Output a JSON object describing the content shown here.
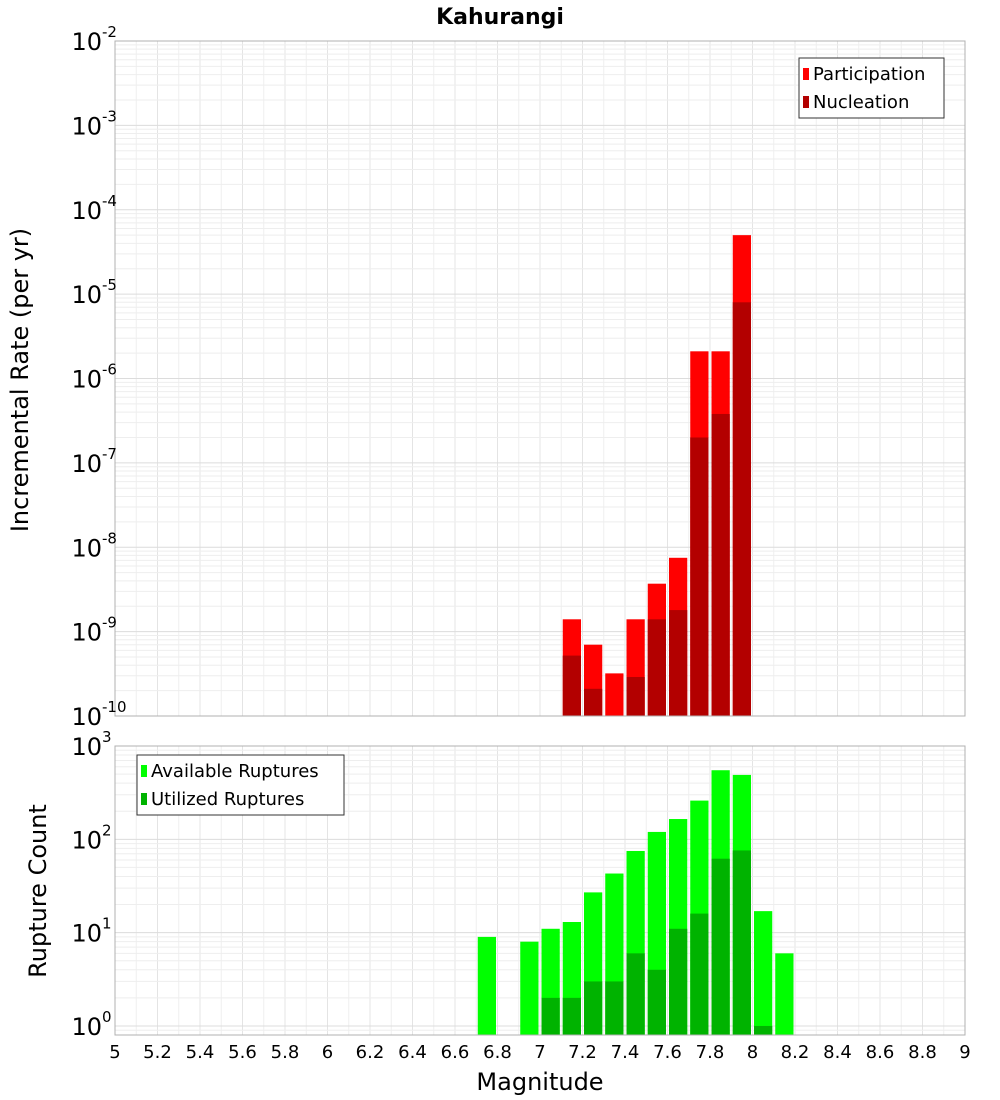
{
  "chart_data": [
    {
      "type": "bar",
      "title": "Kahurangi",
      "xlabel": "",
      "ylabel": "Incremental Rate (per yr)",
      "yscale": "log",
      "ylim": [
        1e-10,
        0.01
      ],
      "xlim": [
        5,
        9
      ],
      "y_ticks": [
        {
          "base": "10",
          "exp": "-10"
        },
        {
          "base": "10",
          "exp": "-9"
        },
        {
          "base": "10",
          "exp": "-8"
        },
        {
          "base": "10",
          "exp": "-7"
        },
        {
          "base": "10",
          "exp": "-6"
        },
        {
          "base": "10",
          "exp": "-5"
        },
        {
          "base": "10",
          "exp": "-4"
        },
        {
          "base": "10",
          "exp": "-3"
        },
        {
          "base": "10",
          "exp": "-2"
        }
      ],
      "grid": true,
      "legend_position": "top-right",
      "x": [
        7.15,
        7.25,
        7.35,
        7.45,
        7.55,
        7.65,
        7.75,
        7.85,
        7.95
      ],
      "series": [
        {
          "name": "Participation",
          "color": "#ff0000",
          "values": [
            1.4e-09,
            7e-10,
            3.2e-10,
            1.4e-09,
            3.7e-09,
            7.5e-09,
            2.1e-06,
            2.1e-06,
            5e-05
          ]
        },
        {
          "name": "Nucleation",
          "color": "#b30000",
          "values": [
            5.2e-10,
            2.1e-10,
            null,
            2.9e-10,
            1.4e-09,
            1.8e-09,
            2e-07,
            3.8e-07,
            8e-06
          ]
        }
      ]
    },
    {
      "type": "bar",
      "xlabel": "Magnitude",
      "ylabel": "Rupture Count",
      "yscale": "log",
      "ylim": [
        0.8,
        1000
      ],
      "xlim": [
        5,
        9
      ],
      "y_ticks": [
        {
          "value": 1,
          "base": "10",
          "exp": "0"
        },
        {
          "value": 10,
          "base": "10",
          "exp": "1"
        },
        {
          "value": 100,
          "base": "10",
          "exp": "2"
        },
        {
          "value": 1000,
          "base": "10",
          "exp": "3"
        }
      ],
      "x_ticks": [
        "5",
        "5.2",
        "5.4",
        "5.6",
        "5.8",
        "6",
        "6.2",
        "6.4",
        "6.6",
        "6.8",
        "7",
        "7.2",
        "7.4",
        "7.6",
        "7.8",
        "8",
        "8.2",
        "8.4",
        "8.6",
        "8.8",
        "9"
      ],
      "grid": true,
      "legend_position": "top-left",
      "x": [
        6.75,
        6.95,
        7.05,
        7.15,
        7.25,
        7.35,
        7.45,
        7.55,
        7.65,
        7.75,
        7.85,
        7.95,
        8.05,
        8.15
      ],
      "series": [
        {
          "name": "Available Ruptures",
          "color": "#00ff00",
          "values": [
            9,
            8,
            11,
            13,
            27,
            43,
            75,
            120,
            165,
            260,
            550,
            490,
            17,
            6
          ]
        },
        {
          "name": "Utilized Ruptures",
          "color": "#00b300",
          "values": [
            null,
            null,
            2,
            2,
            3,
            3,
            6,
            4,
            11,
            16,
            62,
            76,
            1,
            null
          ]
        }
      ]
    }
  ]
}
